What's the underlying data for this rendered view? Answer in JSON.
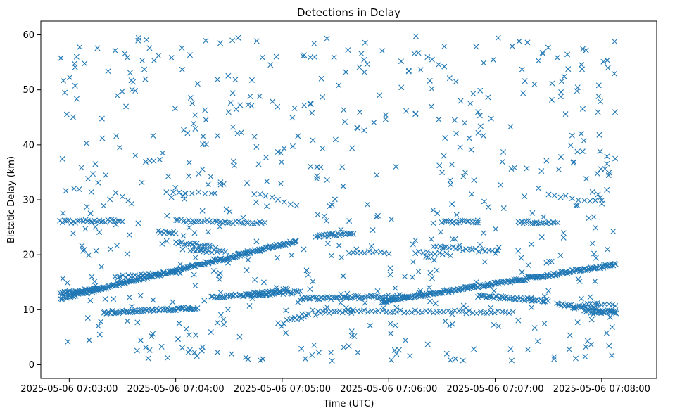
{
  "chart_data": {
    "type": "scatter",
    "title": "Detections in Delay",
    "xlabel": "Time (UTC)",
    "ylabel": "Bistatic Delay (km)",
    "xlim_seconds": [
      -16,
      331
    ],
    "ylim": [
      -2.5,
      62.5
    ],
    "x_ticks": [
      {
        "t": 0,
        "label": "2025-05-06 07:03:00"
      },
      {
        "t": 60,
        "label": "2025-05-06 07:04:00"
      },
      {
        "t": 120,
        "label": "2025-05-06 07:05:00"
      },
      {
        "t": 180,
        "label": "2025-05-06 07:06:00"
      },
      {
        "t": 240,
        "label": "2025-05-06 07:07:00"
      },
      {
        "t": 300,
        "label": "2025-05-06 07:08:00"
      }
    ],
    "y_ticks": [
      0,
      10,
      20,
      30,
      40,
      50,
      60
    ],
    "x_origin": "2025-05-06 07:03:00 UTC",
    "marker": "x",
    "color": "#1f77b4",
    "grid": false,
    "series": [
      {
        "name": "Detections",
        "description": "x = seconds after 07:03:00, y = bistatic delay km",
        "tracks": [
          {
            "kind": "line",
            "t_start": -5,
            "t_end": 128,
            "y_start": 12.0,
            "y_end": 22.5,
            "count": 220
          },
          {
            "kind": "line",
            "t_start": 176,
            "t_end": 308,
            "y_start": 11.5,
            "y_end": 18.2,
            "count": 220
          },
          {
            "kind": "line",
            "t_start": -5,
            "t_end": 16,
            "y_start": 13.0,
            "y_end": 13.8,
            "count": 30
          },
          {
            "kind": "line",
            "t_start": 20,
            "t_end": 72,
            "y_start": 9.5,
            "y_end": 10.3,
            "count": 70
          },
          {
            "kind": "line",
            "t_start": 80,
            "t_end": 130,
            "y_start": 12.3,
            "y_end": 13.2,
            "count": 55
          },
          {
            "kind": "line",
            "t_start": 130,
            "t_end": 190,
            "y_start": 12.0,
            "y_end": 12.5,
            "count": 60
          },
          {
            "kind": "line",
            "t_start": 230,
            "t_end": 270,
            "y_start": 12.5,
            "y_end": 11.6,
            "count": 45
          },
          {
            "kind": "line",
            "t_start": 275,
            "t_end": 308,
            "y_start": 11.0,
            "y_end": 9.5,
            "count": 35
          },
          {
            "kind": "line",
            "t_start": -5,
            "t_end": 30,
            "y_start": 26.0,
            "y_end": 26.2,
            "count": 30
          },
          {
            "kind": "line",
            "t_start": 60,
            "t_end": 110,
            "y_start": 26.2,
            "y_end": 25.8,
            "count": 35
          },
          {
            "kind": "line",
            "t_start": 210,
            "t_end": 230,
            "y_start": 26.0,
            "y_end": 26.0,
            "count": 18
          },
          {
            "kind": "line",
            "t_start": 253,
            "t_end": 275,
            "y_start": 26.0,
            "y_end": 25.8,
            "count": 20
          },
          {
            "kind": "line",
            "t_start": 26,
            "t_end": 60,
            "y_start": 16.0,
            "y_end": 16.8,
            "count": 25
          },
          {
            "kind": "line",
            "t_start": 50,
            "t_end": 60,
            "y_start": 24.2,
            "y_end": 24.0,
            "count": 10
          },
          {
            "kind": "line",
            "t_start": 55,
            "t_end": 80,
            "y_start": 31.2,
            "y_end": 31.2,
            "count": 8
          },
          {
            "kind": "line",
            "t_start": 60,
            "t_end": 80,
            "y_start": 22.2,
            "y_end": 21.6,
            "count": 18
          },
          {
            "kind": "line",
            "t_start": 68,
            "t_end": 88,
            "y_start": 20.8,
            "y_end": 20.5,
            "count": 14
          },
          {
            "kind": "line",
            "t_start": 100,
            "t_end": 123,
            "y_start": 12.8,
            "y_end": 13.6,
            "count": 20
          },
          {
            "kind": "line",
            "t_start": 104,
            "t_end": 128,
            "y_start": 31.2,
            "y_end": 29.0,
            "count": 8
          },
          {
            "kind": "line",
            "t_start": 123,
            "t_end": 135,
            "y_start": 8.0,
            "y_end": 9.0,
            "count": 10
          },
          {
            "kind": "line",
            "t_start": 139,
            "t_end": 160,
            "y_start": 23.3,
            "y_end": 24.0,
            "count": 25
          },
          {
            "kind": "line",
            "t_start": 140,
            "t_end": 160,
            "y_start": 9.5,
            "y_end": 9.8,
            "count": 14
          },
          {
            "kind": "line",
            "t_start": 160,
            "t_end": 250,
            "y_start": 9.8,
            "y_end": 9.5,
            "count": 45
          },
          {
            "kind": "line",
            "t_start": 160,
            "t_end": 180,
            "y_start": 20.5,
            "y_end": 20.3,
            "count": 10
          },
          {
            "kind": "line",
            "t_start": 195,
            "t_end": 215,
            "y_start": 20.5,
            "y_end": 20.0,
            "count": 10
          },
          {
            "kind": "line",
            "t_start": 205,
            "t_end": 240,
            "y_start": 21.5,
            "y_end": 20.5,
            "count": 20
          },
          {
            "kind": "line",
            "t_start": 270,
            "t_end": 300,
            "y_start": 31.0,
            "y_end": 29.5,
            "count": 10
          },
          {
            "kind": "line",
            "t_start": 290,
            "t_end": 308,
            "y_start": 9.6,
            "y_end": 9.5,
            "count": 16
          },
          {
            "kind": "line",
            "t_start": 290,
            "t_end": 308,
            "y_start": 11.0,
            "y_end": 10.8,
            "count": 10
          },
          {
            "kind": "random",
            "t_start": -5,
            "t_end": 308,
            "y_min": 0.5,
            "y_max": 60,
            "count": 640
          }
        ]
      }
    ]
  }
}
